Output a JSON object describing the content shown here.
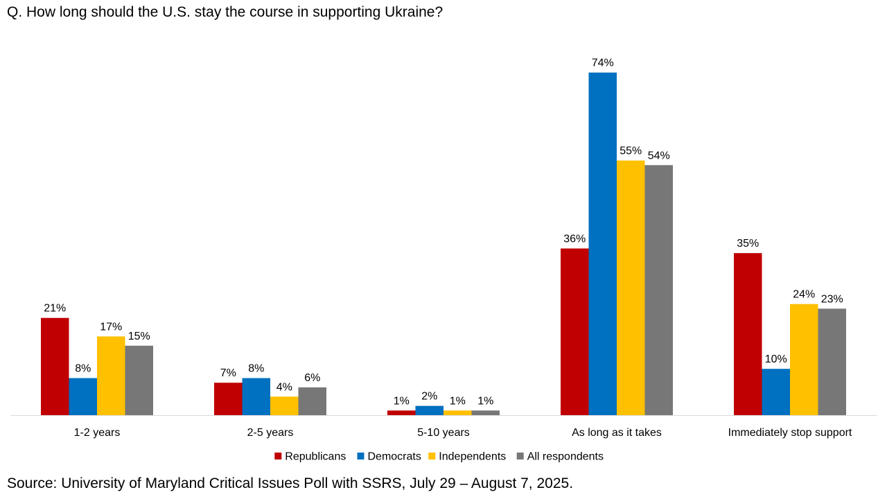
{
  "title": "Q. How long should the U.S. stay the course in supporting Ukraine?",
  "source": "Source: University of Maryland Critical Issues Poll with SSRS, July 29 – August 7, 2025.",
  "chart_data": {
    "type": "bar",
    "title": "Q. How long should the U.S. stay the course in supporting Ukraine?",
    "xlabel": "",
    "ylabel": "",
    "ylim": [
      0,
      80
    ],
    "grid": false,
    "legend_position": "bottom",
    "categories": [
      "1-2 years",
      "2-5 years",
      "5-10 years",
      "As long as it takes",
      "Immediately stop support"
    ],
    "series": [
      {
        "name": "Republicans",
        "color": "#C00000",
        "values": [
          21,
          7,
          1,
          36,
          35
        ]
      },
      {
        "name": "Democrats",
        "color": "#0070C0",
        "values": [
          8,
          8,
          2,
          74,
          10
        ]
      },
      {
        "name": "Independents",
        "color": "#FFC000",
        "values": [
          17,
          4,
          1,
          55,
          24
        ]
      },
      {
        "name": "All respondents",
        "color": "#777777",
        "values": [
          15,
          6,
          1,
          54,
          23
        ]
      }
    ],
    "value_suffix": "%"
  }
}
